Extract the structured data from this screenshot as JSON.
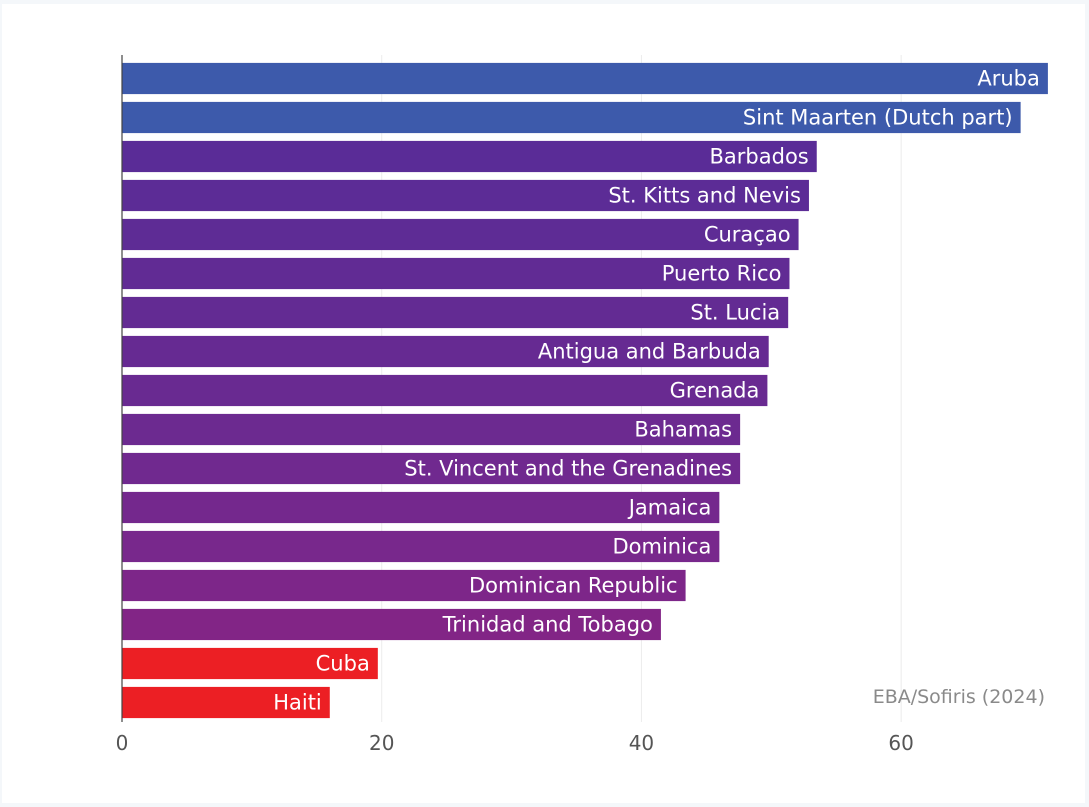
{
  "chart_data": {
    "type": "bar",
    "orientation": "horizontal",
    "title": "",
    "xlabel": "",
    "ylabel": "",
    "xlim": [
      0,
      71
    ],
    "grid": true,
    "x_ticks": [
      0,
      20,
      40,
      60
    ],
    "source": "EBA/Sofiris (2024)",
    "categories": [
      "Aruba",
      "Sint Maarten (Dutch part)",
      "Barbados",
      "St. Kitts and Nevis",
      "Curaçao",
      "Puerto Rico",
      "St. Lucia",
      "Antigua and Barbuda",
      "Grenada",
      "Bahamas",
      "St. Vincent and the Grenadines",
      "Jamaica",
      "Dominica",
      "Dominican Republic",
      "Trinidad and Tobago",
      "Cuba",
      "Haiti"
    ],
    "values": [
      71.3,
      69.2,
      53.5,
      52.9,
      52.1,
      51.4,
      51.3,
      49.8,
      49.7,
      47.6,
      47.6,
      46.0,
      46.0,
      43.4,
      41.5,
      19.7,
      16.0
    ],
    "colors": [
      "#3d5aab",
      "#3d5aab",
      "#5a2c97",
      "#5c2c96",
      "#5e2c95",
      "#612b94",
      "#632b93",
      "#662a92",
      "#692a91",
      "#6c2a90",
      "#70298f",
      "#74288d",
      "#78288c",
      "#7d2689",
      "#822586",
      "#ec1f24",
      "#ec1f24"
    ]
  }
}
